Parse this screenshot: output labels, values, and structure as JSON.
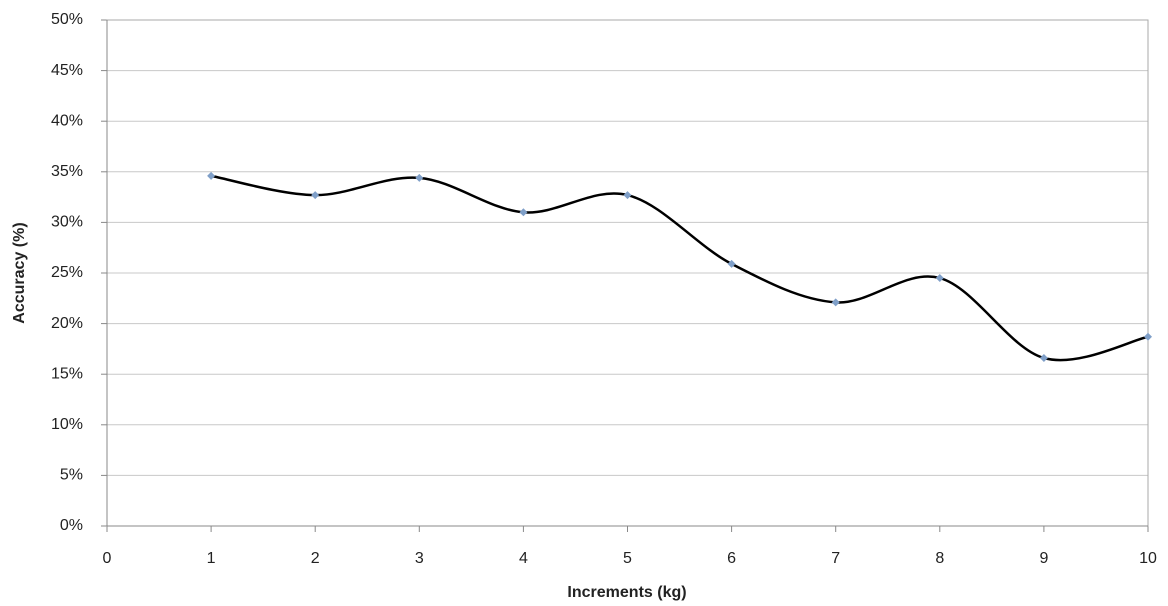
{
  "chart_data": {
    "type": "line",
    "x_label": "Increments (kg)",
    "y_label": "Accuracy (%)",
    "x": [
      1,
      2,
      3,
      4,
      5,
      6,
      7,
      8,
      9,
      10
    ],
    "series": [
      {
        "name": "Accuracy",
        "color": "#000000",
        "marker_color": "#7f9fc8",
        "values": [
          34.6,
          32.7,
          34.4,
          31.0,
          32.7,
          25.9,
          22.1,
          24.5,
          16.6,
          18.7
        ]
      }
    ],
    "xlim": [
      0,
      10
    ],
    "xticks": [
      0,
      1,
      2,
      3,
      4,
      5,
      6,
      7,
      8,
      9,
      10
    ],
    "ylim": [
      0,
      50
    ],
    "yticks": [
      {
        "value": 0,
        "label": "0%"
      },
      {
        "value": 5,
        "label": "5%"
      },
      {
        "value": 10,
        "label": "10%"
      },
      {
        "value": 15,
        "label": "15%"
      },
      {
        "value": 20,
        "label": "20%"
      },
      {
        "value": 25,
        "label": "25%"
      },
      {
        "value": 30,
        "label": "30%"
      },
      {
        "value": 35,
        "label": "35%"
      },
      {
        "value": 40,
        "label": "40%"
      },
      {
        "value": 45,
        "label": "45%"
      },
      {
        "value": 50,
        "label": "50%"
      }
    ],
    "grid": true,
    "smooth": true
  }
}
